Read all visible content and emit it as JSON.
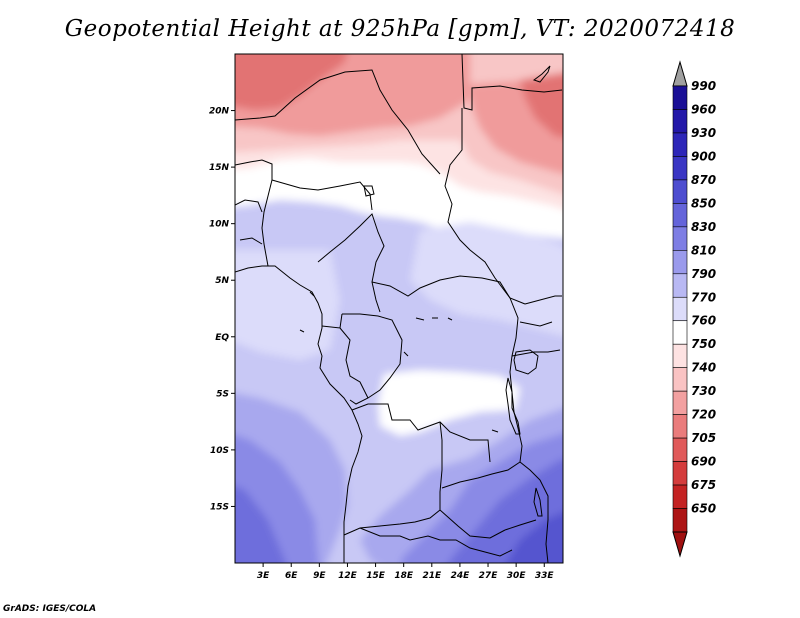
{
  "title": "Geopotential Height at 925hPa [gpm], VT: 2020072418",
  "credit": "GrADS: IGES/COLA",
  "map": {
    "lon_range": [
      0,
      35
    ],
    "lat_range": [
      -20,
      25
    ],
    "lat_ticks": [
      {
        "value": 20,
        "label": "20N"
      },
      {
        "value": 15,
        "label": "15N"
      },
      {
        "value": 10,
        "label": "10N"
      },
      {
        "value": 5,
        "label": "5N"
      },
      {
        "value": 0,
        "label": "EQ"
      },
      {
        "value": -5,
        "label": "5S"
      },
      {
        "value": -10,
        "label": "10S"
      },
      {
        "value": -15,
        "label": "15S"
      }
    ],
    "lon_ticks": [
      {
        "value": 3,
        "label": "3E"
      },
      {
        "value": 6,
        "label": "6E"
      },
      {
        "value": 9,
        "label": "9E"
      },
      {
        "value": 12,
        "label": "12E"
      },
      {
        "value": 15,
        "label": "15E"
      },
      {
        "value": 18,
        "label": "18E"
      },
      {
        "value": 21,
        "label": "21E"
      },
      {
        "value": 24,
        "label": "24E"
      },
      {
        "value": 27,
        "label": "27E"
      },
      {
        "value": 30,
        "label": "30E"
      },
      {
        "value": 33,
        "label": "33E"
      }
    ]
  },
  "colorbar": {
    "levels": [
      {
        "label": "990",
        "color": "#1a0f96"
      },
      {
        "label": "960",
        "color": "#2318a8"
      },
      {
        "label": "930",
        "color": "#2d26b8"
      },
      {
        "label": "900",
        "color": "#3a36c4"
      },
      {
        "label": "870",
        "color": "#4d4dd0"
      },
      {
        "label": "850",
        "color": "#6464da"
      },
      {
        "label": "830",
        "color": "#7e7ee4"
      },
      {
        "label": "810",
        "color": "#9a9aec"
      },
      {
        "label": "790",
        "color": "#b8b8f3"
      },
      {
        "label": "770",
        "color": "#dcdcfa"
      },
      {
        "label": "760",
        "color": "#ffffff"
      },
      {
        "label": "750",
        "color": "#fde2e2"
      },
      {
        "label": "740",
        "color": "#f9c3c3"
      },
      {
        "label": "730",
        "color": "#f2a0a0"
      },
      {
        "label": "720",
        "color": "#ea7c7c"
      },
      {
        "label": "705",
        "color": "#e05a5a"
      },
      {
        "label": "690",
        "color": "#d43c3c"
      },
      {
        "label": "675",
        "color": "#c42222"
      },
      {
        "label": "650",
        "color": "#ad1414"
      }
    ],
    "top_arrow_color": "#a0a0a0",
    "bottom_arrow_color": "#a01010"
  },
  "field_colors": {
    "red_dark": "#e27373",
    "red_mid": "#f09b9b",
    "red_light": "#f8c6c6",
    "pink": "#fde3e3",
    "white": "#ffffff",
    "lav_pale": "#dcdcfa",
    "lav": "#c8c8f5",
    "blue_light": "#a8a8ee",
    "blue_mid": "#8a8ae6",
    "blue": "#6e6edc",
    "blue_dark": "#5555cf"
  }
}
